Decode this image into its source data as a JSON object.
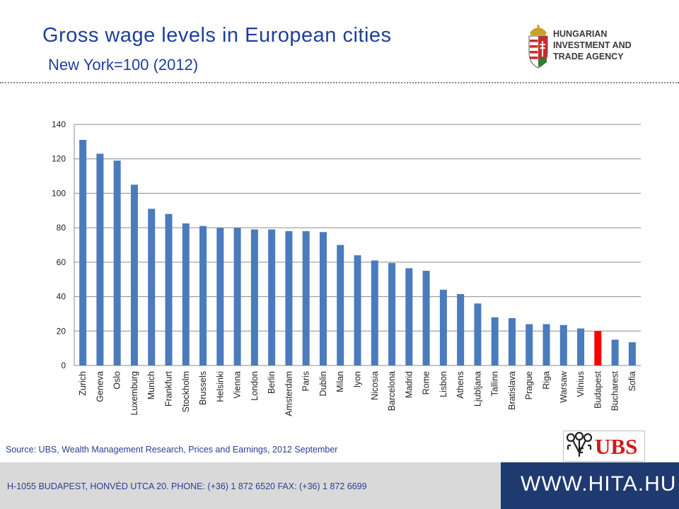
{
  "header": {
    "title": "Gross wage levels in European cities",
    "subtitle": "New York=100 (2012)"
  },
  "agency_logo": {
    "lines": [
      "HUNGARIAN",
      "INVESTMENT AND",
      "TRADE AGENCY"
    ],
    "icon": "hungarian-coat-of-arms-icon"
  },
  "chart_data": {
    "type": "bar",
    "categories": [
      "Zurich",
      "Geneva",
      "Oslo",
      "Luxemburg",
      "Munich",
      "Frankfurt",
      "Stockholm",
      "Brussels",
      "Helsinki",
      "Vienna",
      "London",
      "Berlin",
      "Amsterdam",
      "Paris",
      "Dublin",
      "Milan",
      "lyon",
      "Nicosia",
      "Barcelona",
      "Madrid",
      "Rome",
      "Lisbon",
      "Athens",
      "Ljubljana",
      "Tallinn",
      "Bratislava",
      "Prague",
      "Riga",
      "Warsaw",
      "Vilnius",
      "Budapest",
      "Bucharest",
      "Sofia"
    ],
    "values": [
      131,
      123,
      119,
      105,
      91,
      88,
      82.5,
      81,
      80,
      80,
      79,
      79,
      78,
      78,
      77.5,
      70,
      64,
      61,
      59.5,
      56.5,
      55,
      44,
      41.5,
      36,
      28,
      27.5,
      24,
      24,
      23.5,
      21.5,
      20,
      15,
      13.5
    ],
    "highlight_category": "Budapest",
    "bar_color": "#4a7bbd",
    "highlight_color": "#ff0000",
    "ylim": [
      0,
      140
    ],
    "yticks": [
      0,
      20,
      40,
      60,
      80,
      100,
      120,
      140
    ],
    "grid": true,
    "xlabel": "",
    "ylabel": ""
  },
  "source": "Source: UBS, Wealth Management Research, Prices and Earnings, 2012 September",
  "ubs_logo": {
    "text": "UBS",
    "icon": "ubs-keys-icon"
  },
  "footer": {
    "address": "H-1055 BUDAPEST, HONVÉD UTCA 20. PHONE: (+36) 1 872 6520  FAX: (+36) 1 872 6699",
    "url": "WWW.HITA.HU"
  }
}
